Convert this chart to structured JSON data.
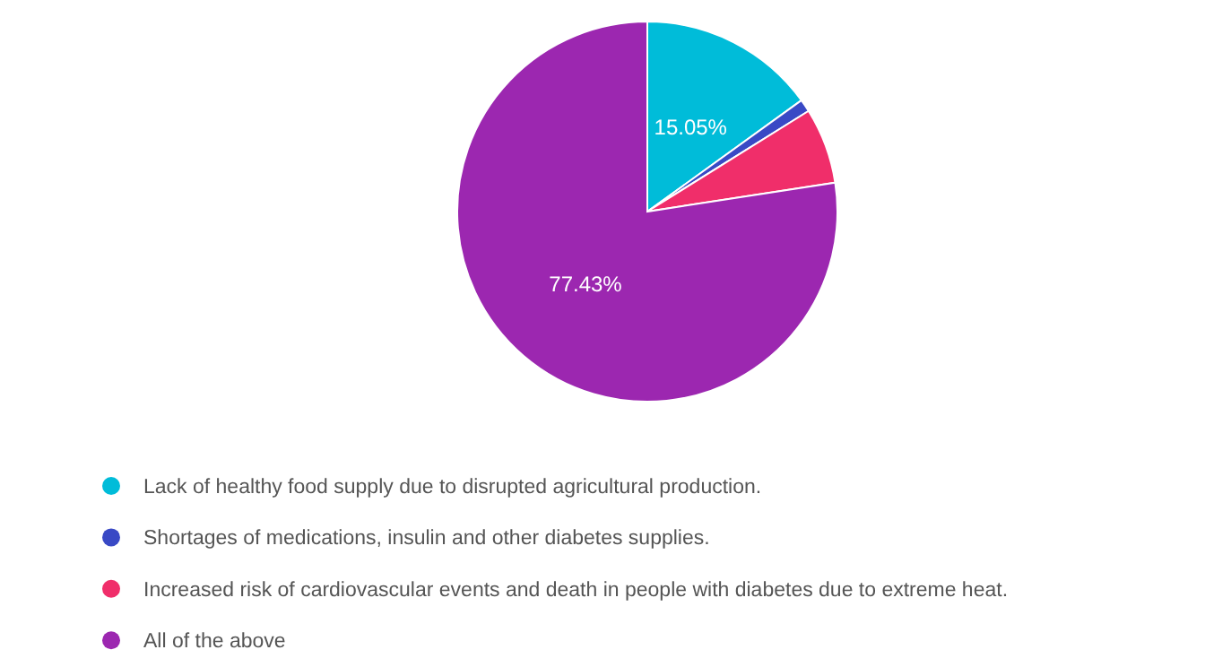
{
  "chart_data": {
    "type": "pie",
    "categories": [
      "Lack of healthy food supply due to disrupted agricultural production.",
      "Shortages of medications, insulin and other diabetes supplies.",
      "Increased risk of cardiovascular events and death in people with diabetes due to extreme heat.",
      "All of the above"
    ],
    "values": [
      15.05,
      1.07,
      6.45,
      77.43
    ],
    "colors": [
      "#00bcd9",
      "#3949c5",
      "#f02e6a",
      "#9c27b0"
    ],
    "value_labels": [
      "15.05%",
      null,
      null,
      "77.43%"
    ],
    "legend": "bottom"
  }
}
